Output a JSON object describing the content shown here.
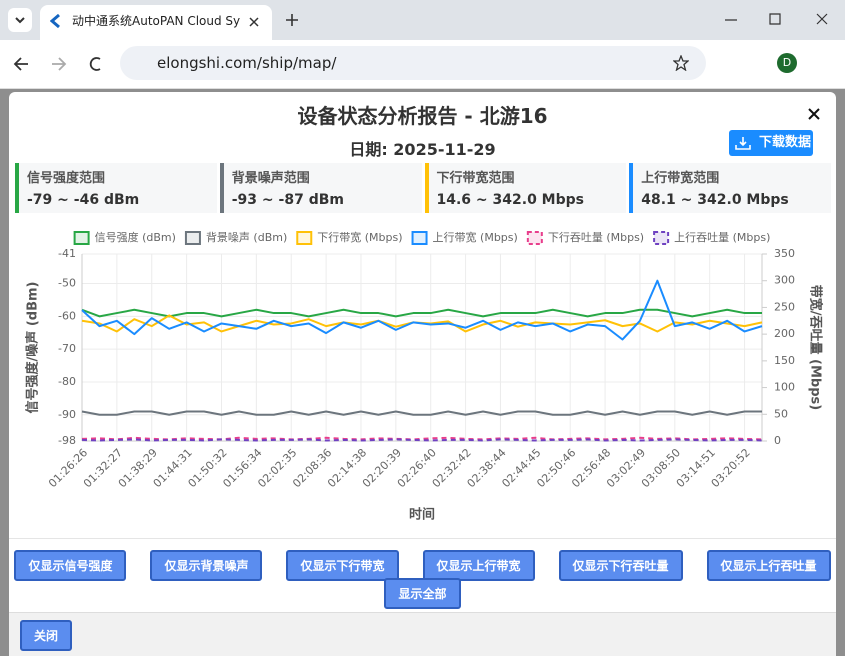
{
  "browser": {
    "tab_title": "动中通系统AutoPAN Cloud Sy",
    "url": "elongshi.com/ship/map/",
    "profile": "D"
  },
  "modal": {
    "title": "设备状态分析报告 - 北游16",
    "date": "日期: 2025-11-29",
    "download": "下载数据",
    "close": "关闭",
    "stats": [
      {
        "label": "信号强度范围",
        "value": "-79 ~ -46 dBm",
        "color": "#28a745"
      },
      {
        "label": "背景噪声范围",
        "value": "-93 ~ -87 dBm",
        "color": "#6c757d"
      },
      {
        "label": "下行带宽范围",
        "value": "14.6 ~ 342.0 Mbps",
        "color": "#ffc107"
      },
      {
        "label": "上行带宽范围",
        "value": "48.1 ~ 342.0 Mbps",
        "color": "#1a8cff"
      }
    ],
    "buttons": [
      "仅显示信号强度",
      "仅显示背景噪声",
      "仅显示下行带宽",
      "仅显示上行带宽",
      "仅显示下行吞吐量",
      "仅显示上行吞吐量"
    ],
    "show_all": "显示全部"
  },
  "chart_data": {
    "type": "line",
    "x_label": "时间",
    "y_label": "信号强度/噪声 (dBm)",
    "y2_label": "带宽/吞吐量 (Mbps)",
    "categories": [
      "01:26:26",
      null,
      "01:32:27",
      null,
      "01:38:29",
      null,
      "01:44:31",
      null,
      "01:50:32",
      null,
      "01:56:34",
      null,
      "02:02:35",
      null,
      "02:08:36",
      null,
      "02:14:38",
      null,
      "02:20:39",
      null,
      "02:26:40",
      null,
      "02:32:42",
      null,
      "02:38:44",
      null,
      "02:44:45",
      null,
      "02:50:46",
      null,
      "02:56:48",
      null,
      "03:02:49",
      null,
      "03:08:50",
      null,
      "03:14:51",
      null,
      "03:20:52",
      null
    ],
    "ylim": [
      -98,
      -41
    ],
    "yticks": [
      -98,
      -90,
      -80,
      -70,
      -60,
      -50,
      -41
    ],
    "y2lim": [
      0,
      350
    ],
    "y2ticks": [
      0,
      50,
      100,
      150,
      200,
      250,
      300,
      350
    ],
    "grid": true,
    "series": [
      {
        "name": "信号强度 (dBm)",
        "color": "#28a745",
        "axis": "y",
        "values": [
          -58,
          -60,
          -59,
          -58,
          -59,
          -60,
          -59,
          -59,
          -60,
          -59,
          -58,
          -59,
          -59,
          -60,
          -59,
          -58,
          -59,
          -59,
          -60,
          -59,
          -59,
          -58,
          -59,
          -60,
          -59,
          -59,
          -59,
          -58,
          -59,
          -60,
          -59,
          -59,
          -58,
          -58,
          -59,
          -60,
          -59,
          -58,
          -59,
          -59
        ]
      },
      {
        "name": "背景噪声 (dBm)",
        "color": "#6c757d",
        "axis": "y",
        "values": [
          -89,
          -90,
          -90,
          -89,
          -89,
          -90,
          -89,
          -89,
          -90,
          -89,
          -90,
          -90,
          -89,
          -90,
          -89,
          -90,
          -89,
          -90,
          -89,
          -90,
          -90,
          -89,
          -90,
          -89,
          -90,
          -89,
          -89,
          -90,
          -90,
          -89,
          -90,
          -89,
          -90,
          -89,
          -89,
          -90,
          -89,
          -90,
          -89,
          -89
        ]
      },
      {
        "name": "下行带宽 (Mbps)",
        "color": "#ffc107",
        "axis": "y2",
        "values": [
          225,
          220,
          205,
          228,
          215,
          235,
          218,
          222,
          205,
          215,
          225,
          218,
          220,
          228,
          215,
          222,
          218,
          225,
          214,
          222,
          220,
          224,
          205,
          218,
          225,
          214,
          222,
          220,
          218,
          222,
          226,
          215,
          220,
          205,
          222,
          218,
          225,
          220,
          215,
          222
        ]
      },
      {
        "name": "上行带宽 (Mbps)",
        "color": "#1a8cff",
        "axis": "y2",
        "values": [
          245,
          215,
          225,
          200,
          230,
          210,
          222,
          205,
          220,
          215,
          210,
          225,
          215,
          220,
          202,
          222,
          212,
          225,
          208,
          222,
          218,
          220,
          212,
          225,
          208,
          222,
          215,
          220,
          205,
          218,
          215,
          190,
          225,
          300,
          215,
          222,
          210,
          225,
          205,
          215
        ]
      },
      {
        "name": "下行吞吐量 (Mbps)",
        "color": "#e83e8c",
        "axis": "y2",
        "dashed": true,
        "values": [
          4,
          5,
          3,
          6,
          4,
          3,
          5,
          4,
          3,
          6,
          4,
          5,
          3,
          4,
          6,
          4,
          3,
          5,
          4,
          3,
          5,
          6,
          4,
          3,
          5,
          4,
          6,
          3,
          4,
          5,
          3,
          4,
          6,
          4,
          5,
          3,
          4,
          5,
          4,
          3
        ]
      },
      {
        "name": "上行吞吐量 (Mbps)",
        "color": "#6f42c1",
        "axis": "y2",
        "dashed": true,
        "values": [
          2,
          1,
          2,
          3,
          1,
          2,
          2,
          1,
          3,
          2,
          1,
          2,
          2,
          3,
          1,
          2,
          1,
          2,
          3,
          2,
          1,
          2,
          2,
          1,
          3,
          2,
          1,
          2,
          2,
          3,
          1,
          2,
          1,
          2,
          3,
          2,
          1,
          2,
          2,
          1
        ]
      }
    ]
  }
}
